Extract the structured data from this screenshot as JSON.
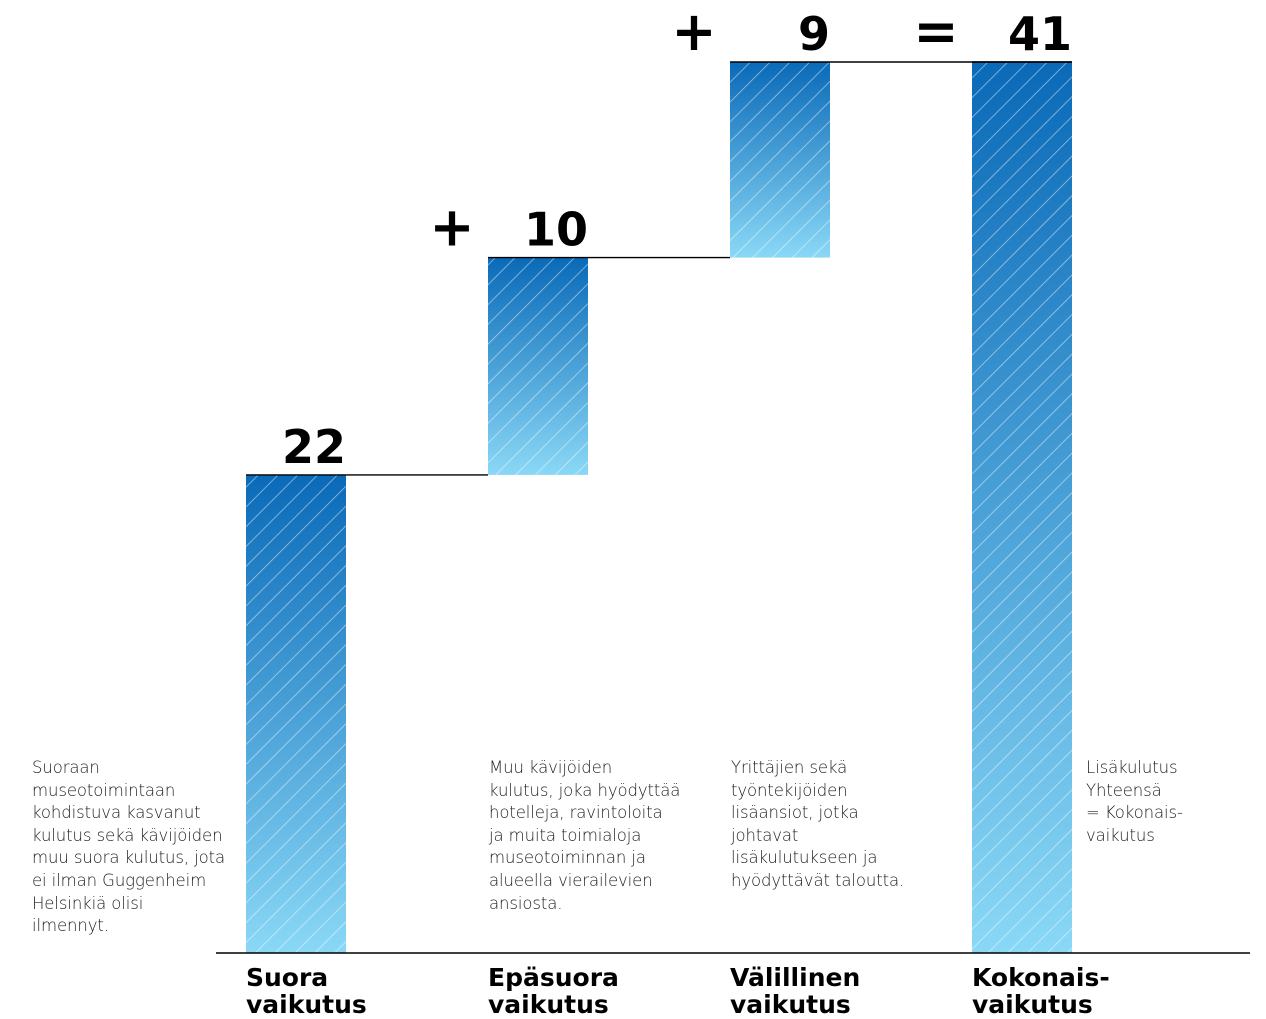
{
  "chart_data": {
    "type": "waterfall",
    "categories": [
      [
        "Suora",
        "vaikutus"
      ],
      [
        "Epäsuora",
        "vaikutus"
      ],
      [
        "Välillinen",
        "vaikutus"
      ],
      [
        "Kokonais-",
        "vaikutus"
      ]
    ],
    "values": [
      22,
      10,
      9,
      41
    ],
    "value_labels": [
      "22",
      "10",
      "9",
      "41"
    ],
    "operators": [
      "",
      "+",
      "+",
      "="
    ],
    "descriptions": [
      [
        "Suoraan",
        "museotoimintaan",
        "kohdistuva kasvanut",
        "kulutus sekä kävijöiden",
        "muu suora kulutus, jota",
        "ei ilman Guggenheim",
        "Helsinkiä olisi",
        "ilmennyt."
      ],
      [
        "Muu kävijöiden",
        "kulutus, joka hyödyttää",
        "hotelleja, ravintoloita",
        "ja muita toimialoja",
        "museotoiminnan ja",
        "alueella vierailevien",
        "ansiosta."
      ],
      [
        "Yrittäjien sekä",
        "työntekijöiden",
        "lisäansiot, jotka",
        "johtavat",
        "lisäkulutukseen ja",
        "hyödyttävät taloutta."
      ],
      [
        "Lisäkulutus",
        "Yhteensä",
        "= Kokonais-",
        "vaikutus"
      ]
    ],
    "ylim": [
      0,
      41
    ],
    "grid": false,
    "legend": "none",
    "colors": {
      "bar_top": "#0a6ab8",
      "bar_bottom": "#8ad8f6",
      "hatch": "#ffffff",
      "line": "#000000"
    }
  }
}
